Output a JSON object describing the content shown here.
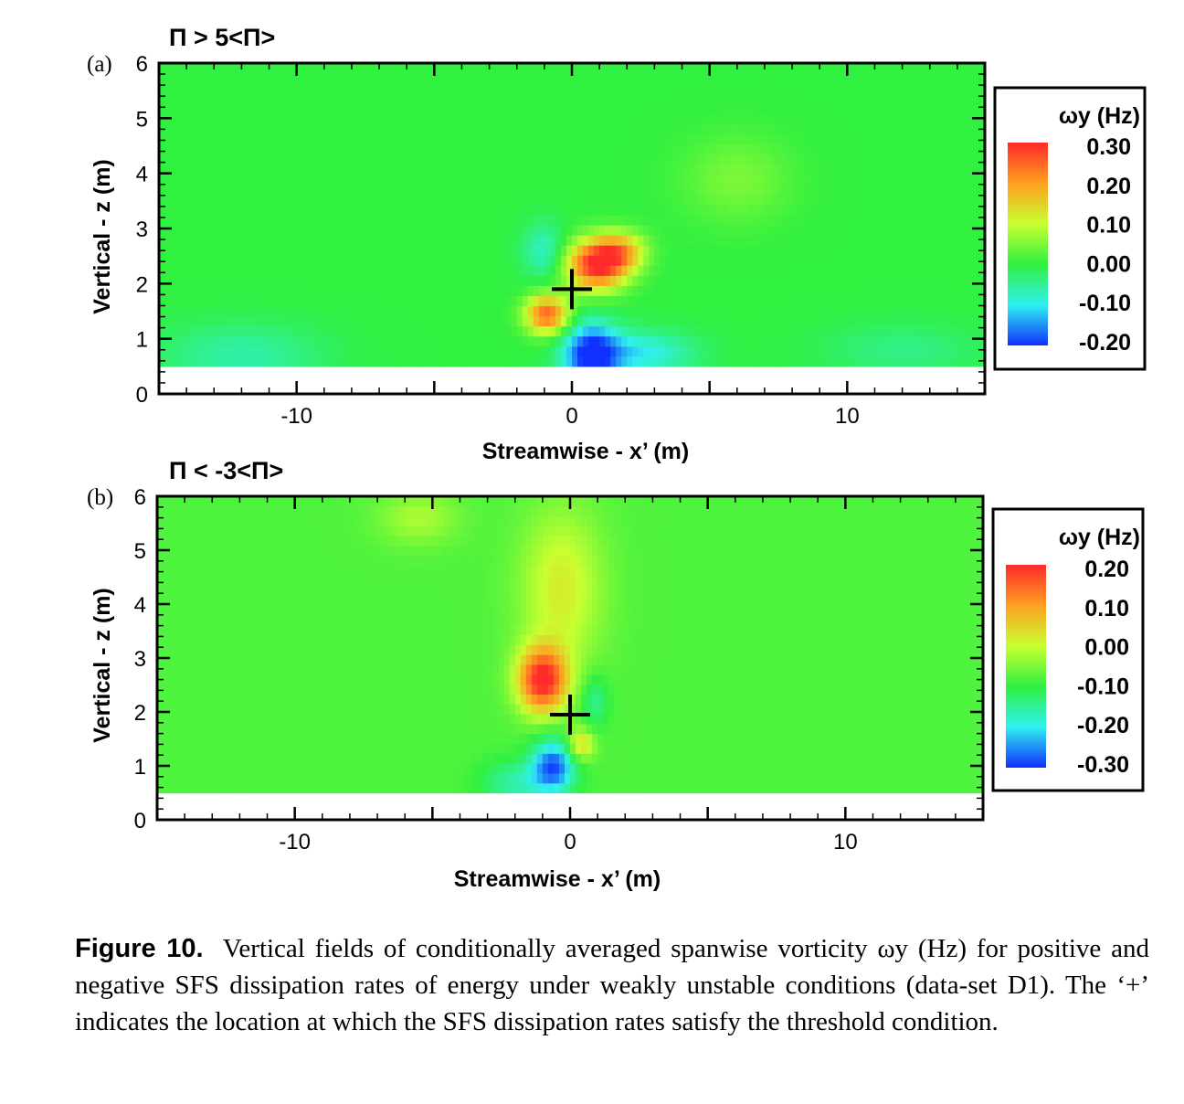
{
  "chart_data": [
    {
      "type": "heatmap",
      "panel_label": "(a)",
      "title": "Π > 5<Π>",
      "xlabel": "Streamwise - x’ (m)",
      "ylabel": "Vertical - z (m)",
      "xlim": [
        -15,
        15
      ],
      "ylim": [
        0,
        6
      ],
      "x_ticks": [
        "-10",
        "0",
        "10"
      ],
      "x_tick_values": [
        -10,
        0,
        10
      ],
      "y_ticks": [
        "0",
        "1",
        "2",
        "3",
        "4",
        "5",
        "6"
      ],
      "y_tick_values": [
        0,
        1,
        2,
        3,
        4,
        5,
        6
      ],
      "data_zmin": 0.5,
      "threshold_marker": {
        "symbol": "+",
        "x": 0,
        "z": 1.9
      },
      "colorbar": {
        "label": "ωy (Hz)",
        "ticks": [
          "0.30",
          "0.20",
          "0.10",
          "0.00",
          "-0.10",
          "-0.20"
        ],
        "range": [
          -0.2,
          0.3
        ]
      },
      "background_value": 0.0,
      "features": [
        {
          "x": 0.9,
          "z": 2.35,
          "value": 0.3,
          "rx": 1.1,
          "rz": 0.45
        },
        {
          "x": 1.8,
          "z": 2.6,
          "value": 0.15,
          "rx": 0.9,
          "rz": 0.35
        },
        {
          "x": -0.9,
          "z": 1.45,
          "value": 0.25,
          "rx": 0.8,
          "rz": 0.35
        },
        {
          "x": 0.7,
          "z": 0.7,
          "value": -0.2,
          "rx": 1.0,
          "rz": 0.6
        },
        {
          "x": 2.5,
          "z": 0.75,
          "value": -0.1,
          "rx": 2.0,
          "rz": 0.4
        },
        {
          "x": -1.0,
          "z": 2.6,
          "value": -0.08,
          "rx": 0.8,
          "rz": 0.5
        },
        {
          "x": 6.0,
          "z": 3.9,
          "value": 0.05,
          "rx": 2.0,
          "rz": 0.8
        },
        {
          "x": -12.0,
          "z": 0.7,
          "value": -0.06,
          "rx": 3.0,
          "rz": 0.6
        },
        {
          "x": 12.0,
          "z": 0.8,
          "value": -0.04,
          "rx": 3.0,
          "rz": 0.5
        }
      ]
    },
    {
      "type": "heatmap",
      "panel_label": "(b)",
      "title": "Π < -3<Π>",
      "xlabel": "Streamwise - x’ (m)",
      "ylabel": "Vertical - z (m)",
      "xlim": [
        -15,
        15
      ],
      "ylim": [
        0,
        6
      ],
      "x_ticks": [
        "-10",
        "0",
        "10"
      ],
      "x_tick_values": [
        -10,
        0,
        10
      ],
      "y_ticks": [
        "0",
        "1",
        "2",
        "3",
        "4",
        "5",
        "6"
      ],
      "y_tick_values": [
        0,
        1,
        2,
        3,
        4,
        5,
        6
      ],
      "data_zmin": 0.5,
      "threshold_marker": {
        "symbol": "+",
        "x": 0,
        "z": 1.95
      },
      "colorbar": {
        "label": "ωy (Hz)",
        "ticks": [
          "0.20",
          "0.10",
          "0.00",
          "-0.10",
          "-0.20",
          "-0.30"
        ],
        "range": [
          -0.3,
          0.2
        ]
      },
      "background_value": -0.08,
      "features": [
        {
          "x": -1.0,
          "z": 2.6,
          "value": 0.2,
          "rx": 0.9,
          "rz": 0.6
        },
        {
          "x": -0.3,
          "z": 4.3,
          "value": 0.02,
          "rx": 1.5,
          "rz": 1.5
        },
        {
          "x": -5.5,
          "z": 5.6,
          "value": -0.02,
          "rx": 1.5,
          "rz": 0.5
        },
        {
          "x": -0.6,
          "z": 1.0,
          "value": -0.28,
          "rx": 0.8,
          "rz": 0.5
        },
        {
          "x": 0.4,
          "z": 1.4,
          "value": 0.05,
          "rx": 0.5,
          "rz": 0.3
        },
        {
          "x": 0.9,
          "z": 2.2,
          "value": -0.15,
          "rx": 0.5,
          "rz": 0.5
        },
        {
          "x": -2.0,
          "z": 0.7,
          "value": -0.16,
          "rx": 1.2,
          "rz": 0.4
        }
      ]
    }
  ],
  "caption": {
    "label": "Figure 10.",
    "text": "Vertical fields of conditionally averaged spanwise vorticity ωy (Hz) for positive and negative SFS dissipation rates of energy under weakly unstable conditions (data-set D1). The ‘+’ indicates the location at which the SFS dissipation rates satisfy the threshold condition."
  }
}
